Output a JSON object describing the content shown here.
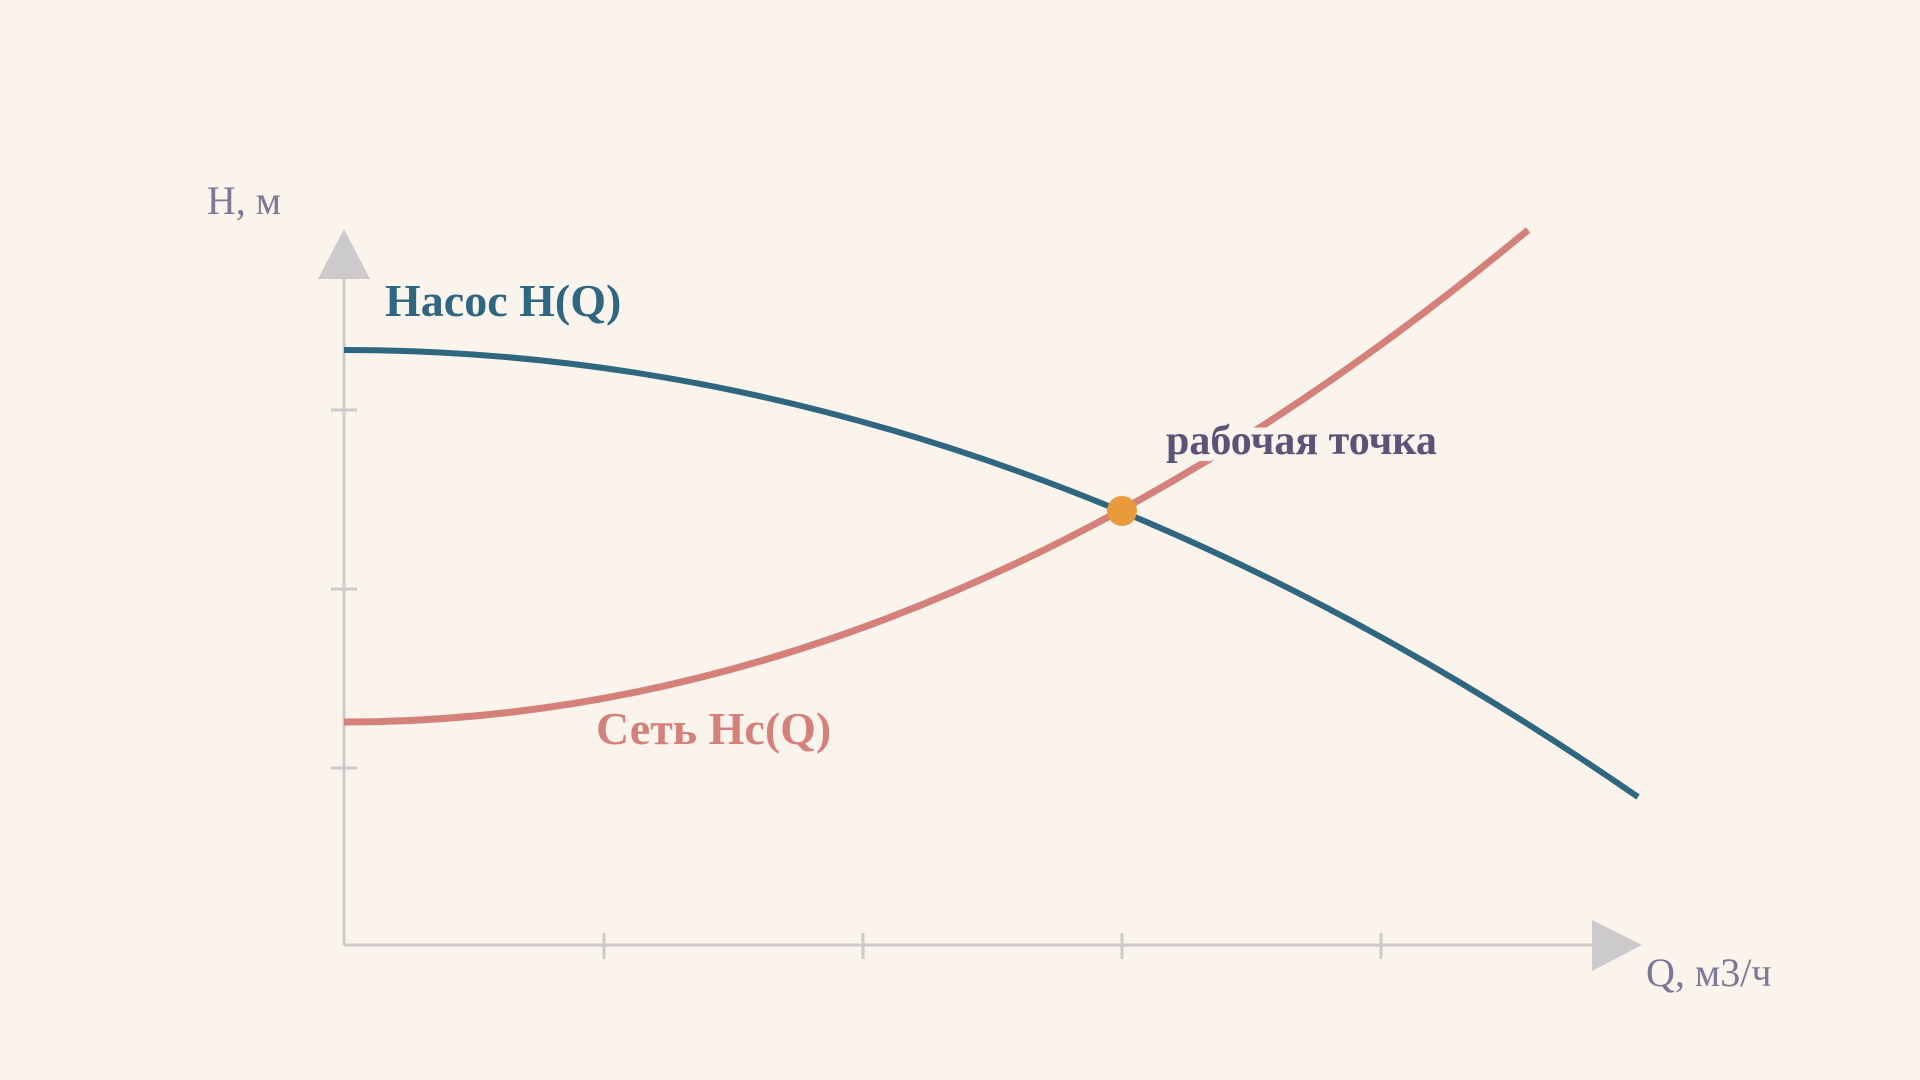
{
  "axes": {
    "y_label": "H, м",
    "x_label": "Q, м3/ч"
  },
  "curves": {
    "pump_label": "Насос H(Q)",
    "system_label": "Сеть Hc(Q)"
  },
  "point": {
    "label": "рабочая точка"
  }
}
